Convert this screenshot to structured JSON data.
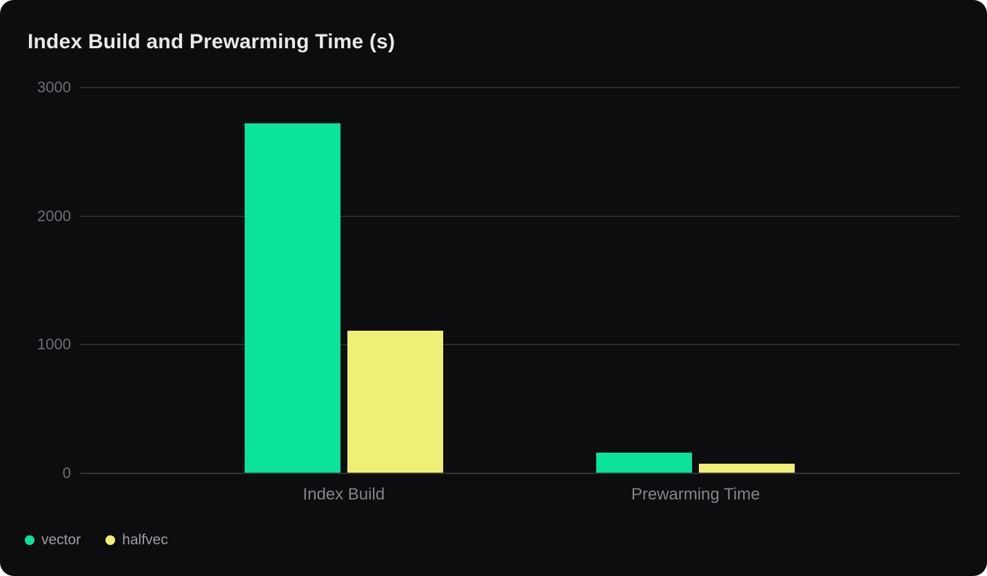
{
  "chart": {
    "title": "Index Build and Prewarming Time (s)"
  },
  "chart_data": {
    "type": "bar",
    "title": "Index Build and Prewarming Time (s)",
    "categories": [
      "Index Build",
      "Prewarming Time"
    ],
    "series": [
      {
        "name": "vector",
        "color": "#0ae49a",
        "values": [
          2720,
          160
        ]
      },
      {
        "name": "halfvec",
        "color": "#edf074",
        "values": [
          1105,
          70
        ]
      }
    ],
    "ylim": [
      0,
      3000
    ],
    "yticks": [
      0,
      1000,
      2000,
      3000
    ],
    "xlabel": "",
    "ylabel": "",
    "grid": true,
    "legend_position": "bottom-left",
    "background_color": "#0d0d0f",
    "grid_color": "#2a2b2e",
    "title_color": "#e8e8ea",
    "tick_label_color": "#6c6f75",
    "category_label_color": "#82858b",
    "legend_text_color": "#9b9ea3"
  }
}
